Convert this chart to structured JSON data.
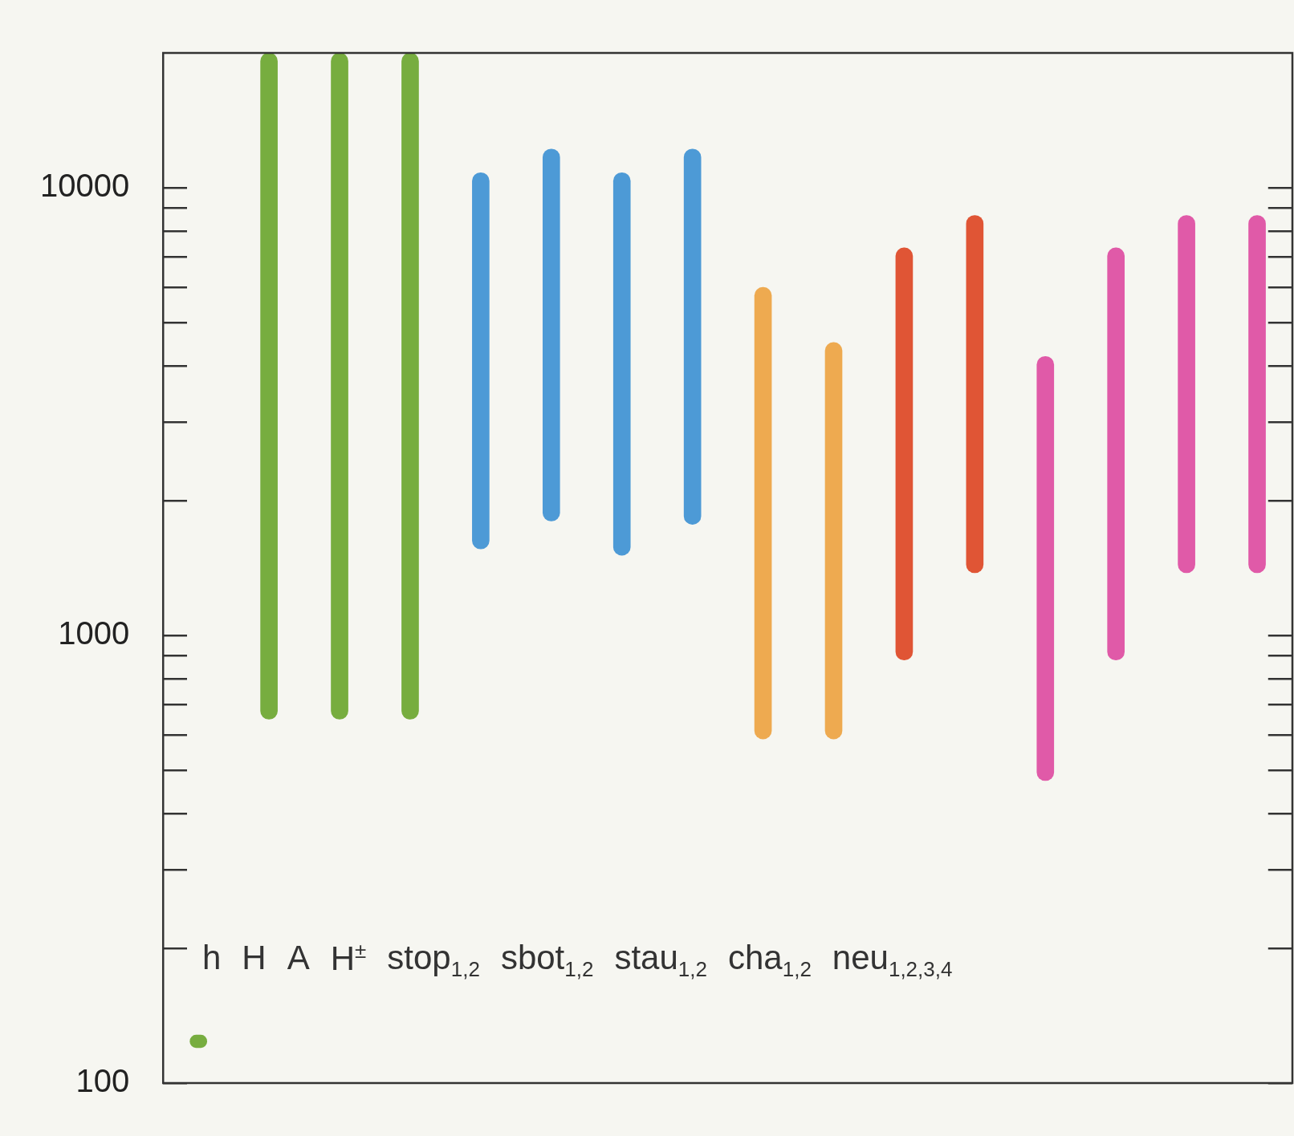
{
  "chart_data": {
    "type": "bar",
    "categories": [
      null,
      null,
      null,
      null,
      null,
      null,
      null,
      null,
      null,
      null,
      null,
      null,
      null,
      null,
      null,
      null
    ],
    "base": [
      120,
      650,
      650,
      650,
      1560,
      1800,
      1510,
      1770,
      587,
      587,
      881,
      1380,
      474,
      881,
      1380,
      1380
    ],
    "values": [
      8,
      19350,
      19350,
      19350,
      9240,
      10400,
      9290,
      10430,
      5403,
      3923,
      6459,
      7290,
      3726,
      6459,
      7290,
      7290
    ],
    "colors": [
      "#77ad3f",
      "#77ad3f",
      "#77ad3f",
      "#77ad3f",
      "#4d9ad6",
      "#4d9ad6",
      "#4d9ad6",
      "#4d9ad6",
      "#eeaa50",
      "#eeaa50",
      "#e05535",
      "#e05535",
      "#e05aa8",
      "#e05aa8",
      "#e05aa8",
      "#e05aa8"
    ],
    "log": true,
    "ylim": [
      100,
      20000
    ],
    "yticks": [
      100,
      {
        "value": 200,
        "label": null
      },
      {
        "value": 300,
        "label": null
      },
      {
        "value": 400,
        "label": null
      },
      {
        "value": 500,
        "label": null
      },
      {
        "value": 600,
        "label": null
      },
      {
        "value": 700,
        "label": null
      },
      {
        "value": 800,
        "label": null
      },
      {
        "value": 900,
        "label": null
      },
      1000,
      {
        "value": 2000,
        "label": null
      },
      {
        "value": 3000,
        "label": null
      },
      {
        "value": 4000,
        "label": null
      },
      {
        "value": 5000,
        "label": null
      },
      {
        "value": 6000,
        "label": null
      },
      {
        "value": 7000,
        "label": null
      },
      {
        "value": 8000,
        "label": null
      },
      {
        "value": 9000,
        "label": null
      },
      10000
    ],
    "tick_labels": "y",
    "grid": "y",
    "annotations": [
      "h",
      "H",
      "A",
      "H$^{±}$",
      "stop$_{1,2}$",
      "sbot$_{1,2}$",
      "stau$_{1,2}$",
      "cha$_{1,2}$",
      "neu$_{1,2,3,4}$"
    ]
  }
}
